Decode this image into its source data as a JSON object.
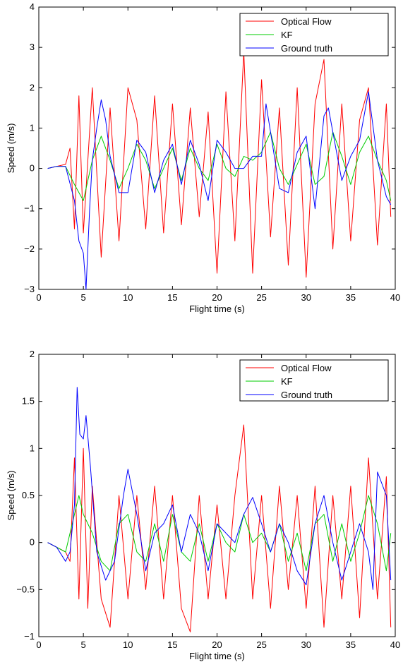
{
  "chart_data": [
    {
      "type": "line",
      "title": "",
      "xlabel": "Flight time (s)",
      "ylabel": "Speed (m/s)",
      "xlim": [
        0,
        40
      ],
      "ylim": [
        -3,
        4
      ],
      "xticks": [
        0,
        5,
        10,
        15,
        20,
        25,
        30,
        35,
        40
      ],
      "yticks": [
        -3,
        -2,
        -1,
        0,
        1,
        2,
        3,
        4
      ],
      "grid": false,
      "legend_position": "top-right",
      "series": [
        {
          "name": "Optical Flow",
          "color": "#ff0000",
          "x": [
            1,
            2,
            3,
            3.5,
            4,
            4.5,
            5,
            6,
            7,
            8,
            9,
            10,
            11,
            12,
            13,
            14,
            15,
            16,
            17,
            18,
            19,
            20,
            21,
            22,
            23,
            24,
            25,
            26,
            27,
            28,
            29,
            30,
            31,
            32,
            33,
            34,
            35,
            36,
            37,
            38,
            39,
            39.5
          ],
          "y": [
            0,
            0.05,
            0.1,
            0.5,
            -1.5,
            1.8,
            -1.6,
            2.0,
            -2.2,
            1.5,
            -1.8,
            2.0,
            1.2,
            -1.5,
            1.8,
            -1.6,
            1.6,
            -1.4,
            1.5,
            -1.2,
            1.4,
            -2.6,
            1.9,
            -1.8,
            2.9,
            -2.6,
            2.2,
            -1.7,
            1.5,
            -2.4,
            2.0,
            -2.7,
            1.6,
            2.7,
            -2.0,
            1.6,
            -1.8,
            1.2,
            2.0,
            -1.9,
            1.6,
            -1.2
          ]
        },
        {
          "name": "KF",
          "color": "#00cc00",
          "x": [
            1,
            2,
            3,
            4,
            5,
            6,
            7,
            8,
            9,
            10,
            11,
            12,
            13,
            14,
            15,
            16,
            17,
            18,
            19,
            20,
            21,
            22,
            23,
            24,
            25,
            26,
            27,
            28,
            29,
            30,
            31,
            32,
            33,
            34,
            35,
            36,
            37,
            38,
            39,
            39.5
          ],
          "y": [
            0,
            0.05,
            0.05,
            -0.4,
            -0.8,
            0.2,
            0.8,
            0.2,
            -0.5,
            0.0,
            0.6,
            0.2,
            -0.5,
            0.0,
            0.5,
            -0.3,
            0.5,
            0.0,
            -0.3,
            0.6,
            0.0,
            -0.2,
            0.3,
            0.2,
            0.4,
            0.9,
            0.0,
            -0.4,
            0.1,
            0.6,
            -0.4,
            -0.2,
            0.9,
            0.3,
            -0.4,
            0.4,
            0.8,
            0.2,
            -0.3,
            -0.8
          ]
        },
        {
          "name": "Ground truth",
          "color": "#0000ff",
          "x": [
            1,
            2,
            3,
            4,
            4.5,
            5,
            5.3,
            5.7,
            6,
            6.5,
            7,
            7.5,
            8,
            9,
            10,
            11,
            12,
            13,
            14,
            15,
            16,
            17,
            18,
            19,
            20,
            21,
            22,
            23,
            24,
            25,
            25.5,
            26,
            27,
            28,
            29,
            30,
            31,
            32,
            32.5,
            33,
            34,
            35,
            36,
            37,
            38,
            39,
            39.5
          ],
          "y": [
            0,
            0.05,
            0.05,
            -0.8,
            -1.8,
            -2.1,
            -3.0,
            -1.0,
            0.2,
            1.0,
            1.7,
            1.2,
            0.3,
            -0.6,
            -0.6,
            0.7,
            0.4,
            -0.6,
            0.2,
            0.6,
            -0.4,
            0.7,
            0.1,
            -0.8,
            0.7,
            0.4,
            0.0,
            0.0,
            0.3,
            0.3,
            1.6,
            0.9,
            -0.5,
            -0.6,
            0.4,
            0.8,
            -1.0,
            1.3,
            1.5,
            0.9,
            -0.3,
            0.3,
            0.7,
            1.9,
            0.2,
            -0.7,
            -0.9
          ]
        }
      ]
    },
    {
      "type": "line",
      "title": "",
      "xlabel": "Flight time (s)",
      "ylabel": "Speed (m/s)",
      "xlim": [
        0,
        40
      ],
      "ylim": [
        -1,
        2
      ],
      "xticks": [
        0,
        5,
        10,
        15,
        20,
        25,
        30,
        35,
        40
      ],
      "yticks": [
        -1,
        -0.5,
        0,
        0.5,
        1,
        1.5,
        2
      ],
      "grid": false,
      "legend_position": "top-right",
      "series": [
        {
          "name": "Optical Flow",
          "color": "#ff0000",
          "x": [
            1,
            2,
            3,
            3.5,
            4,
            4.5,
            5,
            5.5,
            6,
            7,
            8,
            9,
            10,
            11,
            12,
            13,
            14,
            15,
            16,
            17,
            18,
            19,
            20,
            21,
            22,
            23,
            24,
            25,
            26,
            27,
            28,
            29,
            30,
            31,
            32,
            33,
            34,
            35,
            36,
            37,
            38,
            39,
            39.5
          ],
          "y": [
            0,
            -0.05,
            -0.1,
            -0.2,
            0.9,
            -0.6,
            1.0,
            -0.7,
            0.6,
            -0.6,
            -0.9,
            0.5,
            -0.6,
            0.5,
            -0.5,
            0.6,
            -0.6,
            0.5,
            -0.7,
            -0.95,
            0.5,
            -0.6,
            0.4,
            -0.6,
            0.5,
            1.25,
            -0.6,
            0.5,
            -0.7,
            0.6,
            -0.5,
            0.5,
            -0.7,
            0.6,
            -0.9,
            0.5,
            -0.6,
            0.6,
            -0.8,
            0.9,
            -0.6,
            0.7,
            -0.9
          ]
        },
        {
          "name": "KF",
          "color": "#00cc00",
          "x": [
            1,
            2,
            3,
            4,
            4.5,
            5,
            6,
            7,
            8,
            9,
            10,
            11,
            12,
            13,
            14,
            15,
            16,
            17,
            18,
            19,
            20,
            21,
            22,
            23,
            24,
            25,
            26,
            27,
            28,
            29,
            30,
            31,
            32,
            33,
            34,
            35,
            36,
            37,
            38,
            39,
            39.5
          ],
          "y": [
            0,
            -0.05,
            -0.1,
            0.3,
            0.5,
            0.3,
            0.1,
            -0.2,
            -0.3,
            0.2,
            0.3,
            -0.1,
            -0.2,
            0.2,
            -0.2,
            0.3,
            -0.1,
            -0.2,
            0.2,
            -0.2,
            0.2,
            0.0,
            -0.1,
            0.3,
            0.0,
            0.1,
            -0.1,
            0.2,
            -0.2,
            0.1,
            -0.3,
            0.2,
            0.3,
            -0.2,
            0.2,
            -0.2,
            0.1,
            0.5,
            0.2,
            -0.3,
            0.1
          ]
        },
        {
          "name": "Ground truth",
          "color": "#0000ff",
          "x": [
            1,
            2,
            3,
            3.5,
            4,
            4.3,
            4.6,
            5,
            5.3,
            5.8,
            6.5,
            7.5,
            8.5,
            9.5,
            10,
            11,
            12,
            13,
            14,
            15,
            16,
            17,
            18,
            19,
            20,
            21,
            22,
            23,
            24,
            25,
            26,
            27,
            28,
            29,
            30,
            31,
            32,
            33,
            34,
            35,
            36,
            37,
            37.5,
            38,
            39,
            39.5
          ],
          "y": [
            0,
            -0.05,
            -0.2,
            -0.1,
            0.4,
            1.65,
            1.15,
            1.1,
            1.35,
            0.8,
            -0.1,
            -0.4,
            -0.2,
            0.5,
            0.78,
            0.3,
            -0.3,
            0.1,
            0.2,
            0.4,
            -0.1,
            0.3,
            0.1,
            -0.3,
            0.2,
            0.1,
            0.0,
            0.3,
            0.48,
            0.2,
            -0.1,
            0.2,
            0.0,
            -0.3,
            -0.45,
            0.2,
            0.5,
            0.0,
            -0.4,
            -0.1,
            0.2,
            -0.1,
            -0.5,
            0.75,
            0.5,
            -0.4
          ]
        }
      ]
    }
  ]
}
